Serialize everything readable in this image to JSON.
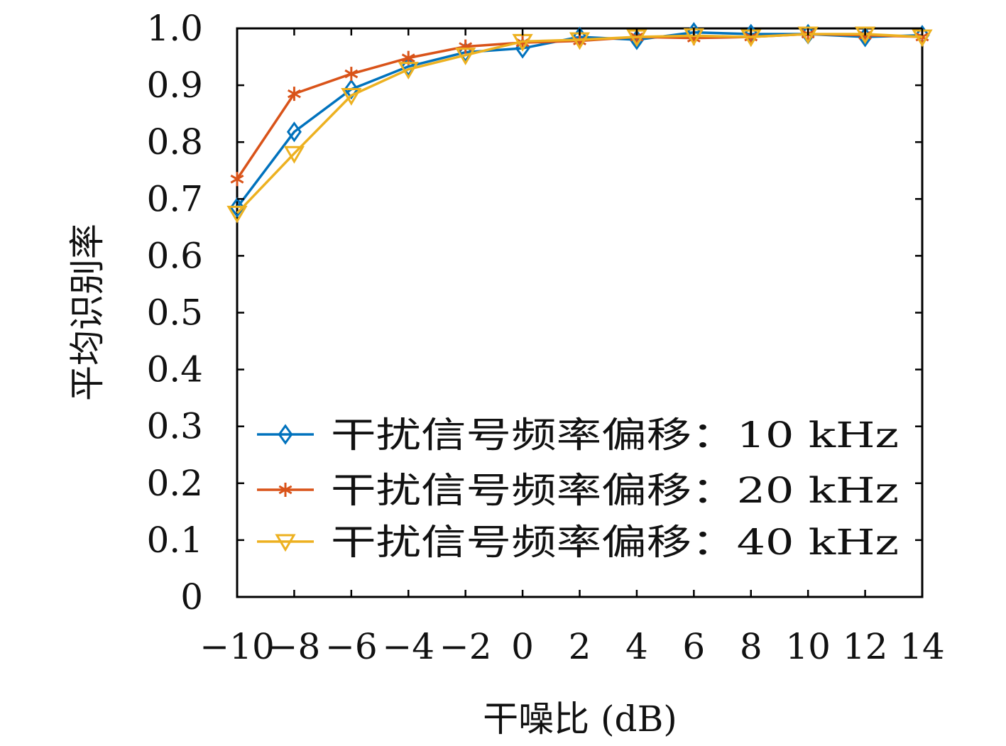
{
  "chart_data": {
    "type": "line",
    "xlabel": "干噪比 (dB)",
    "ylabel": "平均识别率",
    "x": [
      -10,
      -8,
      -6,
      -4,
      -2,
      0,
      2,
      4,
      6,
      8,
      10,
      12,
      14
    ],
    "x_tick_labels": [
      "−10",
      "−8",
      "−6",
      "−4",
      "−2",
      "0",
      "2",
      "4",
      "6",
      "8",
      "10",
      "12",
      "14"
    ],
    "y_ticks": [
      0,
      0.1,
      0.2,
      0.3,
      0.4,
      0.5,
      0.6,
      0.7,
      0.8,
      0.9,
      1.0
    ],
    "y_tick_labels": [
      "0",
      "0.1",
      "0.2",
      "0.3",
      "0.4",
      "0.5",
      "0.6",
      "0.7",
      "0.8",
      "0.9",
      "1.0"
    ],
    "xlim": [
      -10,
      14
    ],
    "ylim": [
      0,
      1.0
    ],
    "grid": false,
    "legend_position": "bottom-right",
    "series": [
      {
        "name": "干扰信号频率偏移：10 kHz",
        "color": "#0072BD",
        "marker": "diamond",
        "values": [
          0.685,
          0.818,
          0.893,
          0.933,
          0.958,
          0.965,
          0.985,
          0.98,
          0.993,
          0.99,
          0.99,
          0.985,
          0.988
        ]
      },
      {
        "name": "干扰信号频率偏移：20 kHz",
        "color": "#D95319",
        "marker": "asterisk",
        "values": [
          0.735,
          0.885,
          0.92,
          0.948,
          0.968,
          0.975,
          0.978,
          0.985,
          0.983,
          0.985,
          0.99,
          0.988,
          0.985
        ]
      },
      {
        "name": "干扰信号频率偏移：40 kHz",
        "color": "#EDB120",
        "marker": "triangle-down",
        "values": [
          0.675,
          0.78,
          0.882,
          0.928,
          0.953,
          0.977,
          0.98,
          0.985,
          0.987,
          0.985,
          0.99,
          0.99,
          0.985
        ]
      }
    ]
  }
}
